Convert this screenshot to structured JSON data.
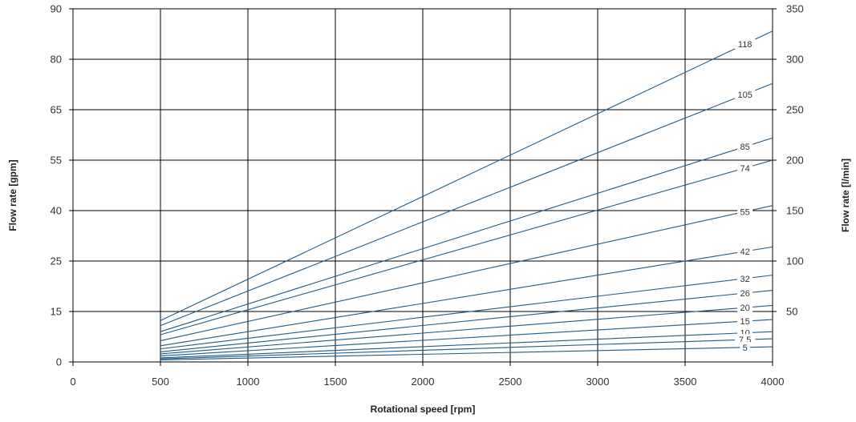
{
  "chart_data": {
    "type": "line",
    "title": "",
    "xlabel": "Rotational speed [rpm]",
    "ylabel_left": "Flow rate [gpm]",
    "ylabel_right": "Flow rate [l/min]",
    "grid": true,
    "legend": "inline-labels-at-line-ends",
    "x_ticks": [
      0,
      500,
      1000,
      1500,
      2000,
      2500,
      3000,
      3500,
      4000
    ],
    "xlim": [
      0,
      4000
    ],
    "y_left_ticks": [
      "0",
      "15",
      "25",
      "40",
      "55",
      "65",
      "80",
      "90"
    ],
    "y_right_ticks": [
      "50",
      "100",
      "150",
      "200",
      "250",
      "300",
      "350"
    ],
    "y_right_lim": [
      0,
      350
    ],
    "series_color": "#1f5a8a",
    "grid_color": "#000000",
    "series": [
      {
        "name": "118",
        "x": [
          500,
          4000
        ],
        "y": [
          41,
          328
        ]
      },
      {
        "name": "105",
        "x": [
          500,
          4000
        ],
        "y": [
          36,
          276
        ]
      },
      {
        "name": "85",
        "x": [
          500,
          4000
        ],
        "y": [
          30,
          222
        ]
      },
      {
        "name": "74",
        "x": [
          500,
          4000
        ],
        "y": [
          27,
          200
        ]
      },
      {
        "name": "55",
        "x": [
          500,
          4000
        ],
        "y": [
          21,
          155
        ]
      },
      {
        "name": "42",
        "x": [
          500,
          4000
        ],
        "y": [
          16,
          114
        ]
      },
      {
        "name": "32",
        "x": [
          500,
          4000
        ],
        "y": [
          13,
          86
        ]
      },
      {
        "name": "26",
        "x": [
          500,
          4000
        ],
        "y": [
          10,
          71
        ]
      },
      {
        "name": "20",
        "x": [
          500,
          4000
        ],
        "y": [
          8,
          56
        ]
      },
      {
        "name": "15",
        "x": [
          500,
          4000
        ],
        "y": [
          6,
          42
        ]
      },
      {
        "name": "10",
        "x": [
          500,
          4000
        ],
        "y": [
          4,
          30
        ]
      },
      {
        "name": "7,5",
        "x": [
          500,
          4000
        ],
        "y": [
          3,
          23
        ]
      },
      {
        "name": "5",
        "x": [
          500,
          4000
        ],
        "y": [
          2,
          15
        ]
      }
    ]
  }
}
